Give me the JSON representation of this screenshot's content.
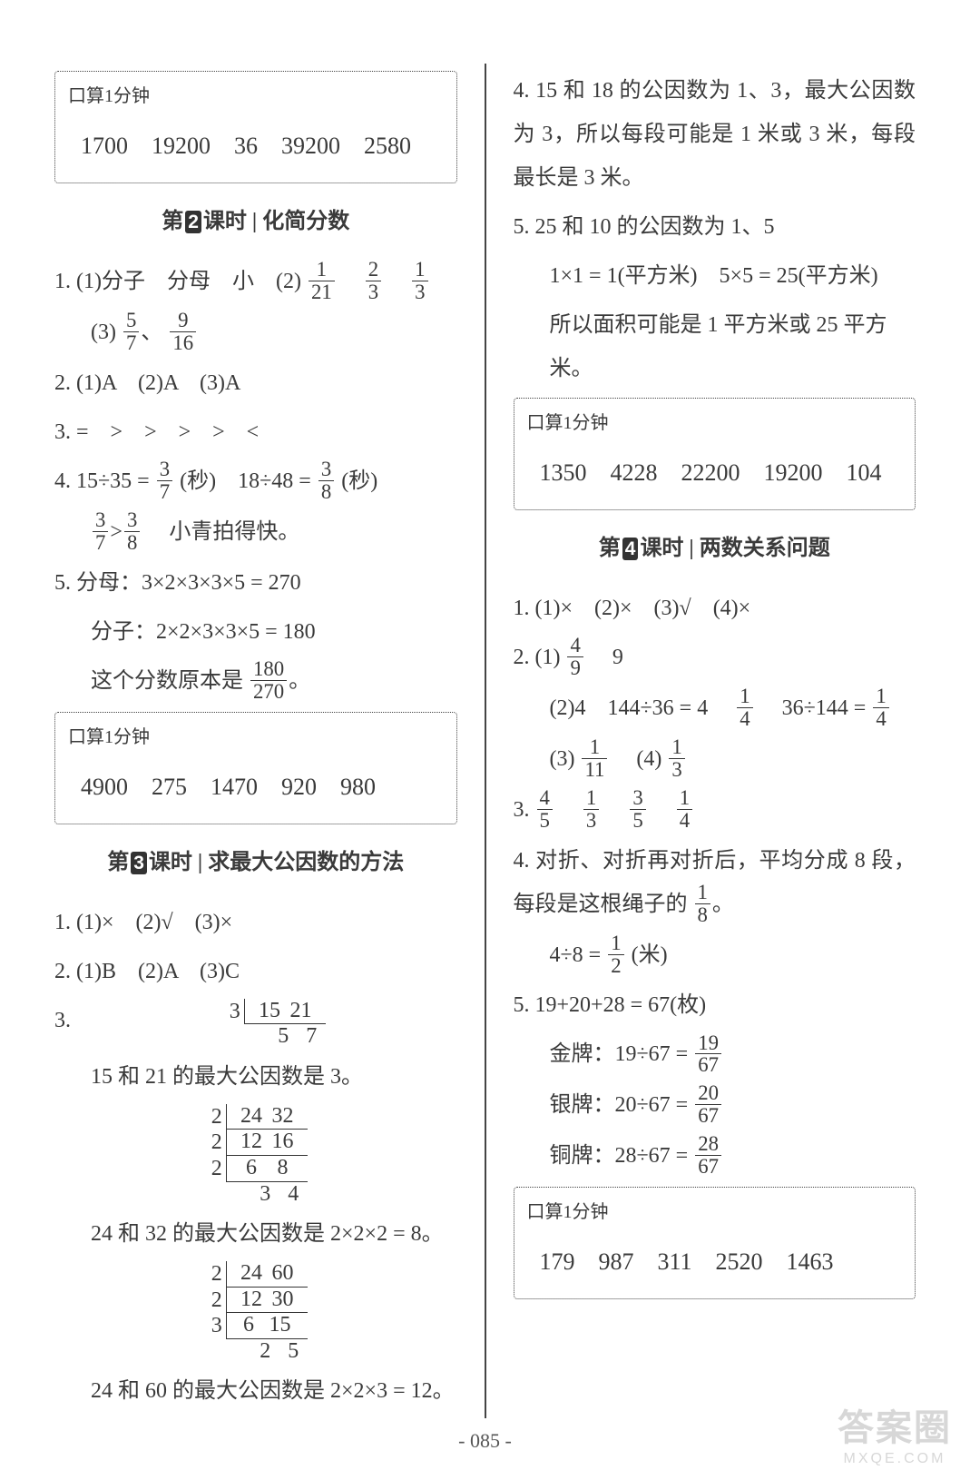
{
  "calcbox_label": "口算1分钟",
  "left": {
    "calc1_values": "1700　19200　36　39200　2580",
    "lesson2": {
      "prefix": "第",
      "num": "2",
      "suffix": "课时 | 化简分数"
    },
    "q1_line1_a": "1. (1)分子　分母　小　(2)",
    "q1_f1": {
      "n": "1",
      "d": "21"
    },
    "q1_f2": {
      "n": "2",
      "d": "3"
    },
    "q1_f3": {
      "n": "1",
      "d": "3"
    },
    "q1_line2_a": "(3)",
    "q1_f4": {
      "n": "5",
      "d": "7"
    },
    "q1_sep": "、",
    "q1_f5": {
      "n": "9",
      "d": "16"
    },
    "q2": "2. (1)A　(2)A　(3)A",
    "q3": "3. =　>　>　>　>　<",
    "q4_a": "4. 15÷35 = ",
    "q4_f1": {
      "n": "3",
      "d": "7"
    },
    "q4_b": "(秒)　18÷48 = ",
    "q4_f2": {
      "n": "3",
      "d": "8"
    },
    "q4_c": "(秒)",
    "q4_line2_f1": {
      "n": "3",
      "d": "7"
    },
    "q4_gt": ">",
    "q4_line2_f2": {
      "n": "3",
      "d": "8"
    },
    "q4_tail": "　小青拍得快。",
    "q5_l1": "5. 分母：3×2×3×3×5 = 270",
    "q5_l2": "分子：2×2×3×3×5 = 180",
    "q5_l3a": "这个分数原本是",
    "q5_f": {
      "n": "180",
      "d": "270"
    },
    "q5_l3b": "。",
    "calc2_values": "4900　275　1470　920　980",
    "lesson3": {
      "prefix": "第",
      "num": "3",
      "suffix": "课时 | 求最大公因数的方法"
    },
    "l3_q1": "1. (1)×　(2)√　(3)×",
    "l3_q2": "2. (1)B　(2)A　(3)C",
    "l3_q3_label": "3.",
    "ladder1": {
      "steps": [
        {
          "div": "3",
          "a": "15",
          "b": "21"
        }
      ],
      "res": {
        "a": "5",
        "b": "7"
      }
    },
    "l3_r1": "15 和 21 的最大公因数是 3。",
    "ladder2": {
      "steps": [
        {
          "div": "2",
          "a": "24",
          "b": "32"
        },
        {
          "div": "2",
          "a": "12",
          "b": "16"
        },
        {
          "div": "2",
          "a": "6",
          "b": "8"
        }
      ],
      "res": {
        "a": "3",
        "b": "4"
      }
    },
    "l3_r2": "24 和 32 的最大公因数是 2×2×2 = 8。",
    "ladder3": {
      "steps": [
        {
          "div": "2",
          "a": "24",
          "b": "60"
        },
        {
          "div": "2",
          "a": "12",
          "b": "30"
        },
        {
          "div": "3",
          "a": "6",
          "b": "15"
        }
      ],
      "res": {
        "a": "2",
        "b": "5"
      }
    },
    "l3_r3": "24 和 60 的最大公因数是 2×2×3 = 12。"
  },
  "right": {
    "q4": "4. 15 和 18 的公因数为 1、3，最大公因数为 3，所以每段可能是 1 米或 3 米，每段最长是 3 米。",
    "q5_l1": "5. 25 和 10 的公因数为 1、5",
    "q5_l2": "1×1 = 1(平方米)　5×5 = 25(平方米)",
    "q5_l3": "所以面积可能是 1 平方米或 25 平方米。",
    "calc1_values": "1350　4228　22200　19200　104",
    "lesson4": {
      "prefix": "第",
      "num": "4",
      "suffix": "课时 | 两数关系问题"
    },
    "l4_q1": "1. (1)×　(2)×　(3)√　(4)×",
    "l4_q2a": "2. (1)",
    "l4_q2_f1": {
      "n": "4",
      "d": "9"
    },
    "l4_q2b": "　9",
    "l4_q2_l2a": "(2)4　144÷36 = 4　",
    "l4_q2_f2": {
      "n": "1",
      "d": "4"
    },
    "l4_q2_l2b": "　36÷144 = ",
    "l4_q2_f3": {
      "n": "1",
      "d": "4"
    },
    "l4_q2_l3a": "(3)",
    "l4_q2_f4": {
      "n": "1",
      "d": "11"
    },
    "l4_q2_l3b": "　(4)",
    "l4_q2_f5": {
      "n": "1",
      "d": "3"
    },
    "l4_q3_label": "3. ",
    "l4_q3_f1": {
      "n": "4",
      "d": "5"
    },
    "l4_q3_f2": {
      "n": "1",
      "d": "3"
    },
    "l4_q3_f3": {
      "n": "3",
      "d": "5"
    },
    "l4_q3_f4": {
      "n": "1",
      "d": "4"
    },
    "l4_q4a": "4. 对折、对折再对折后，平均分成 8 段，每段是这根绳子的",
    "l4_q4_f1": {
      "n": "1",
      "d": "8"
    },
    "l4_q4b": "。",
    "l4_q4_l2a": "4÷8 = ",
    "l4_q4_f2": {
      "n": "1",
      "d": "2"
    },
    "l4_q4_l2b": "(米)",
    "l4_q5_l1": "5. 19+20+28 = 67(枚)",
    "l4_q5_l2a": "金牌：19÷67 = ",
    "l4_q5_f1": {
      "n": "19",
      "d": "67"
    },
    "l4_q5_l3a": "银牌：20÷67 = ",
    "l4_q5_f2": {
      "n": "20",
      "d": "67"
    },
    "l4_q5_l4a": "铜牌：28÷67 = ",
    "l4_q5_f3": {
      "n": "28",
      "d": "67"
    },
    "calc2_values": "179　987　311　2520　1463"
  },
  "page_number": "- 085 -",
  "watermark": {
    "big": "答案圈",
    "small": "MXQE.COM"
  },
  "colors": {
    "text": "#3a3a3a",
    "badge_bg": "#333333",
    "badge_fg": "#ffffff",
    "watermark": "#bdbdbd",
    "bg": "#ffffff"
  }
}
